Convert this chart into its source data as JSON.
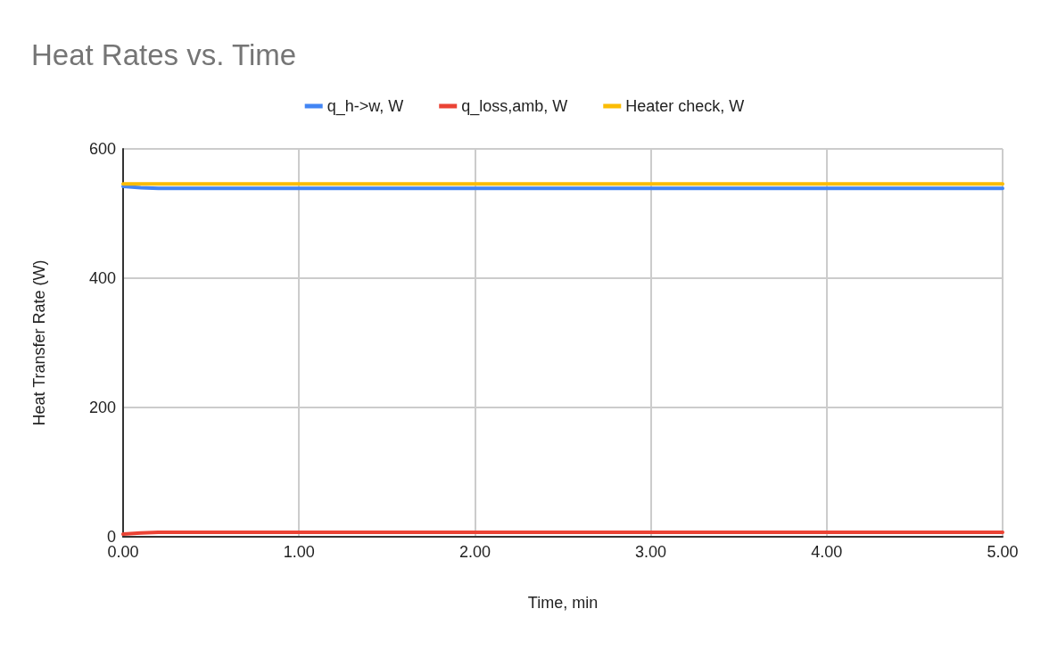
{
  "chart_data": {
    "type": "line",
    "title": "Heat Rates vs. Time",
    "xlabel": "Time, min",
    "ylabel": "Heat Transfer Rate (W)",
    "x": [
      0,
      0.1,
      0.2,
      0.3,
      0.5,
      1,
      2,
      3,
      4,
      5
    ],
    "series": [
      {
        "name": "q_h->w, W",
        "color": "#4285f4",
        "values": [
          542,
          540,
          539,
          539,
          539,
          539,
          539,
          539,
          539,
          539
        ]
      },
      {
        "name": "q_loss,amb, W",
        "color": "#ea4335",
        "values": [
          4,
          6,
          7,
          7,
          7,
          7,
          7,
          7,
          7,
          7
        ]
      },
      {
        "name": "Heater check, W",
        "color": "#fbbc04",
        "values": [
          546,
          546,
          546,
          546,
          546,
          546,
          546,
          546,
          546,
          546
        ]
      }
    ],
    "xlim": [
      0,
      5
    ],
    "xticks": [
      {
        "value": 0,
        "label": "0.00"
      },
      {
        "value": 1,
        "label": "1.00"
      },
      {
        "value": 2,
        "label": "2.00"
      },
      {
        "value": 3,
        "label": "3.00"
      },
      {
        "value": 4,
        "label": "4.00"
      },
      {
        "value": 5,
        "label": "5.00"
      }
    ],
    "ylim": [
      0,
      600
    ],
    "yticks": [
      0,
      200,
      400,
      600
    ],
    "grid": true,
    "legend": "top",
    "marker": "none",
    "line_style": "solid"
  }
}
